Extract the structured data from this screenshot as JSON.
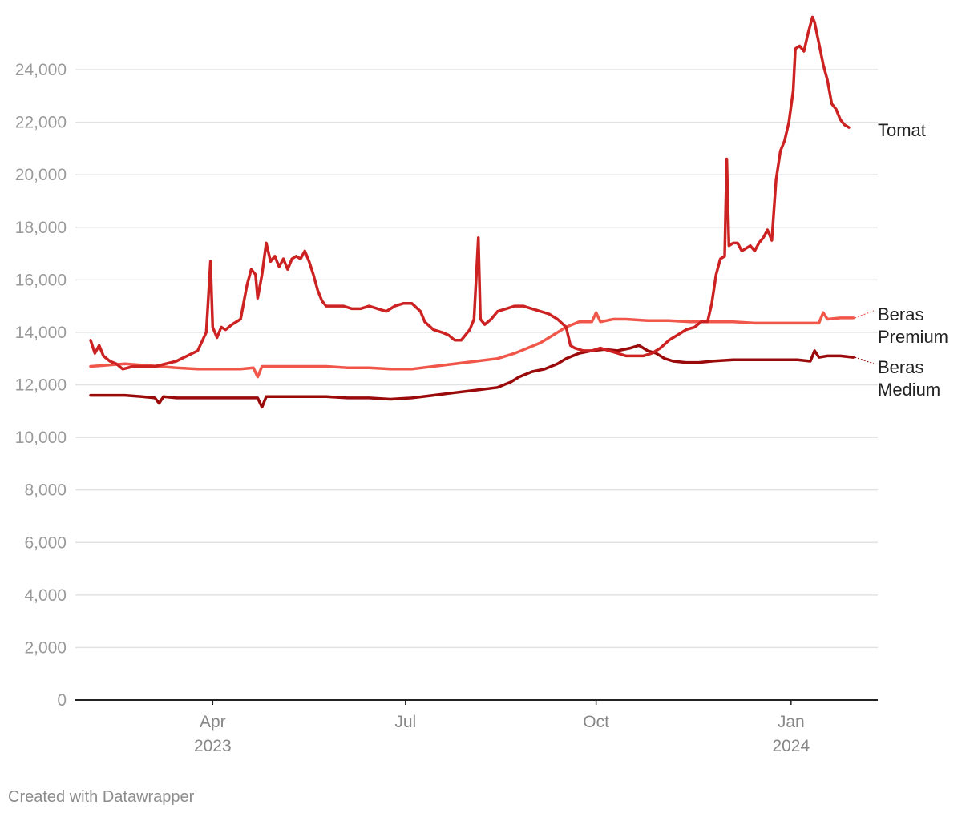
{
  "chart_data": {
    "type": "line",
    "title": "",
    "xlabel": "",
    "ylabel": "",
    "ylim": [
      0,
      26500
    ],
    "yticks": [
      0,
      2000,
      4000,
      6000,
      8000,
      10000,
      12000,
      14000,
      16000,
      18000,
      20000,
      22000,
      24000
    ],
    "ytick_labels": [
      "0",
      "2,000",
      "4,000",
      "6,000",
      "8,000",
      "10,000",
      "12,000",
      "14,000",
      "16,000",
      "18,000",
      "20,000",
      "22,000",
      "24,000"
    ],
    "xrange": [
      0,
      360
    ],
    "xticks": [
      {
        "x": 57,
        "label": "Apr",
        "sublabel": "2023"
      },
      {
        "x": 147,
        "label": "Jul",
        "sublabel": ""
      },
      {
        "x": 236,
        "label": "Oct",
        "sublabel": ""
      },
      {
        "x": 327,
        "label": "Jan",
        "sublabel": "2024"
      }
    ],
    "grid": true,
    "series": [
      {
        "name": "Tomat",
        "label_lines": [
          "Tomat"
        ],
        "color": "#cc2222",
        "points": [
          [
            0,
            13700
          ],
          [
            2,
            13200
          ],
          [
            4,
            13500
          ],
          [
            6,
            13100
          ],
          [
            9,
            12900
          ],
          [
            12,
            12800
          ],
          [
            15,
            12600
          ],
          [
            20,
            12700
          ],
          [
            25,
            12700
          ],
          [
            30,
            12700
          ],
          [
            35,
            12800
          ],
          [
            40,
            12900
          ],
          [
            45,
            13100
          ],
          [
            50,
            13300
          ],
          [
            54,
            14000
          ],
          [
            56,
            16700
          ],
          [
            57,
            14200
          ],
          [
            59,
            13800
          ],
          [
            61,
            14200
          ],
          [
            63,
            14100
          ],
          [
            66,
            14300
          ],
          [
            70,
            14500
          ],
          [
            73,
            15800
          ],
          [
            75,
            16400
          ],
          [
            77,
            16200
          ],
          [
            78,
            15300
          ],
          [
            80,
            16200
          ],
          [
            82,
            17400
          ],
          [
            84,
            16700
          ],
          [
            86,
            16900
          ],
          [
            88,
            16500
          ],
          [
            90,
            16800
          ],
          [
            92,
            16400
          ],
          [
            94,
            16800
          ],
          [
            96,
            16900
          ],
          [
            98,
            16800
          ],
          [
            100,
            17100
          ],
          [
            102,
            16700
          ],
          [
            104,
            16200
          ],
          [
            106,
            15600
          ],
          [
            108,
            15200
          ],
          [
            110,
            15000
          ],
          [
            114,
            15000
          ],
          [
            118,
            15000
          ],
          [
            122,
            14900
          ],
          [
            126,
            14900
          ],
          [
            130,
            15000
          ],
          [
            134,
            14900
          ],
          [
            138,
            14800
          ],
          [
            142,
            15000
          ],
          [
            146,
            15100
          ],
          [
            150,
            15100
          ],
          [
            154,
            14800
          ],
          [
            156,
            14400
          ],
          [
            160,
            14100
          ],
          [
            164,
            14000
          ],
          [
            167,
            13900
          ],
          [
            170,
            13700
          ],
          [
            173,
            13700
          ],
          [
            177,
            14100
          ],
          [
            179,
            14500
          ],
          [
            181,
            17600
          ],
          [
            182,
            14500
          ],
          [
            184,
            14300
          ],
          [
            187,
            14500
          ],
          [
            190,
            14800
          ],
          [
            194,
            14900
          ],
          [
            198,
            15000
          ],
          [
            202,
            15000
          ],
          [
            206,
            14900
          ],
          [
            210,
            14800
          ],
          [
            214,
            14700
          ],
          [
            218,
            14500
          ],
          [
            222,
            14200
          ],
          [
            224,
            13500
          ],
          [
            226,
            13400
          ],
          [
            230,
            13300
          ],
          [
            234,
            13300
          ],
          [
            238,
            13400
          ],
          [
            242,
            13300
          ],
          [
            246,
            13200
          ],
          [
            250,
            13100
          ],
          [
            254,
            13100
          ],
          [
            258,
            13100
          ],
          [
            262,
            13200
          ],
          [
            266,
            13400
          ],
          [
            270,
            13700
          ],
          [
            274,
            13900
          ],
          [
            278,
            14100
          ],
          [
            282,
            14200
          ],
          [
            285,
            14400
          ],
          [
            288,
            14400
          ],
          [
            290,
            15100
          ],
          [
            292,
            16200
          ],
          [
            294,
            16800
          ],
          [
            296,
            16900
          ],
          [
            297,
            20600
          ],
          [
            298,
            17300
          ],
          [
            300,
            17400
          ],
          [
            302,
            17400
          ],
          [
            304,
            17100
          ],
          [
            306,
            17200
          ],
          [
            308,
            17300
          ],
          [
            310,
            17100
          ],
          [
            312,
            17400
          ],
          [
            314,
            17600
          ],
          [
            316,
            17900
          ],
          [
            318,
            17500
          ],
          [
            320,
            19800
          ],
          [
            322,
            20900
          ],
          [
            324,
            21300
          ],
          [
            326,
            22000
          ],
          [
            328,
            23200
          ],
          [
            329,
            24800
          ],
          [
            331,
            24900
          ],
          [
            333,
            24700
          ],
          [
            335,
            25400
          ],
          [
            337,
            26000
          ],
          [
            338,
            25800
          ],
          [
            340,
            25000
          ],
          [
            342,
            24200
          ],
          [
            344,
            23600
          ],
          [
            346,
            22700
          ],
          [
            348,
            22500
          ],
          [
            350,
            22100
          ],
          [
            352,
            21900
          ],
          [
            354,
            21800
          ]
        ]
      },
      {
        "name": "Beras Premium",
        "label_lines": [
          "Beras",
          "Premium"
        ],
        "color": "#f0574a",
        "points": [
          [
            0,
            12700
          ],
          [
            8,
            12750
          ],
          [
            16,
            12800
          ],
          [
            24,
            12750
          ],
          [
            32,
            12700
          ],
          [
            40,
            12650
          ],
          [
            50,
            12600
          ],
          [
            60,
            12600
          ],
          [
            70,
            12600
          ],
          [
            76,
            12650
          ],
          [
            78,
            12300
          ],
          [
            80,
            12700
          ],
          [
            90,
            12700
          ],
          [
            100,
            12700
          ],
          [
            110,
            12700
          ],
          [
            120,
            12650
          ],
          [
            130,
            12650
          ],
          [
            140,
            12600
          ],
          [
            150,
            12600
          ],
          [
            160,
            12700
          ],
          [
            170,
            12800
          ],
          [
            180,
            12900
          ],
          [
            190,
            13000
          ],
          [
            198,
            13200
          ],
          [
            204,
            13400
          ],
          [
            210,
            13600
          ],
          [
            216,
            13900
          ],
          [
            222,
            14200
          ],
          [
            228,
            14400
          ],
          [
            234,
            14400
          ],
          [
            236,
            14750
          ],
          [
            238,
            14400
          ],
          [
            244,
            14500
          ],
          [
            250,
            14500
          ],
          [
            260,
            14450
          ],
          [
            270,
            14450
          ],
          [
            280,
            14400
          ],
          [
            290,
            14400
          ],
          [
            300,
            14400
          ],
          [
            310,
            14350
          ],
          [
            320,
            14350
          ],
          [
            330,
            14350
          ],
          [
            340,
            14350
          ],
          [
            342,
            14750
          ],
          [
            344,
            14500
          ],
          [
            350,
            14550
          ],
          [
            356,
            14550
          ]
        ]
      },
      {
        "name": "Beras Medium",
        "label_lines": [
          "Beras",
          "Medium"
        ],
        "color": "#9b0a0a",
        "points": [
          [
            0,
            11600
          ],
          [
            8,
            11600
          ],
          [
            16,
            11600
          ],
          [
            24,
            11550
          ],
          [
            30,
            11500
          ],
          [
            32,
            11300
          ],
          [
            34,
            11550
          ],
          [
            40,
            11500
          ],
          [
            50,
            11500
          ],
          [
            60,
            11500
          ],
          [
            70,
            11500
          ],
          [
            78,
            11500
          ],
          [
            80,
            11150
          ],
          [
            82,
            11550
          ],
          [
            90,
            11550
          ],
          [
            100,
            11550
          ],
          [
            110,
            11550
          ],
          [
            120,
            11500
          ],
          [
            130,
            11500
          ],
          [
            140,
            11450
          ],
          [
            150,
            11500
          ],
          [
            160,
            11600
          ],
          [
            170,
            11700
          ],
          [
            180,
            11800
          ],
          [
            190,
            11900
          ],
          [
            196,
            12100
          ],
          [
            200,
            12300
          ],
          [
            206,
            12500
          ],
          [
            212,
            12600
          ],
          [
            218,
            12800
          ],
          [
            222,
            13000
          ],
          [
            228,
            13200
          ],
          [
            234,
            13300
          ],
          [
            240,
            13350
          ],
          [
            246,
            13300
          ],
          [
            252,
            13400
          ],
          [
            256,
            13500
          ],
          [
            260,
            13300
          ],
          [
            264,
            13200
          ],
          [
            268,
            13000
          ],
          [
            272,
            12900
          ],
          [
            278,
            12850
          ],
          [
            284,
            12850
          ],
          [
            290,
            12900
          ],
          [
            300,
            12950
          ],
          [
            310,
            12950
          ],
          [
            320,
            12950
          ],
          [
            330,
            12950
          ],
          [
            336,
            12900
          ],
          [
            338,
            13300
          ],
          [
            340,
            13050
          ],
          [
            344,
            13100
          ],
          [
            350,
            13100
          ],
          [
            356,
            13050
          ]
        ]
      }
    ]
  },
  "footer": {
    "credit": "Created with Datawrapper"
  }
}
